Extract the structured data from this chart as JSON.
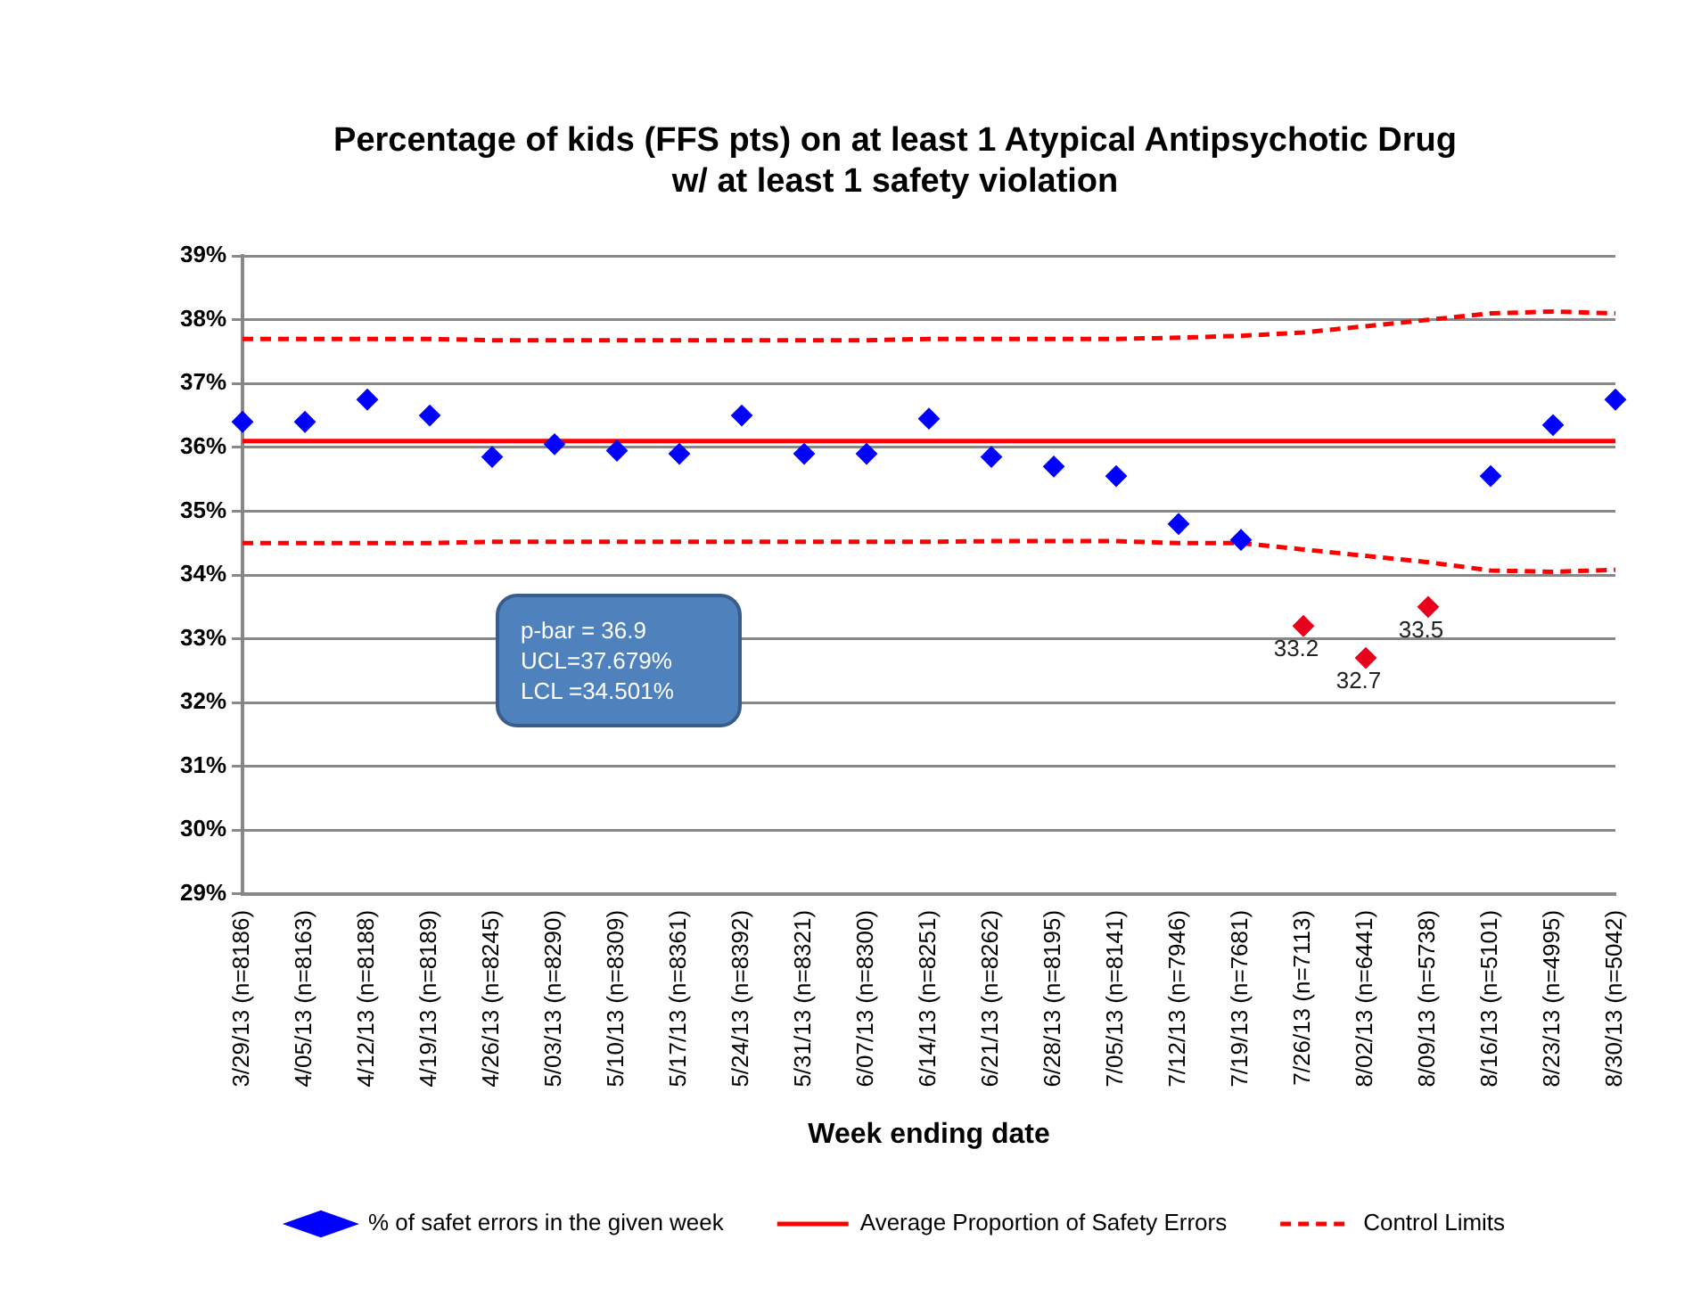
{
  "chart_data": {
    "type": "scatter",
    "title": "Percentage of kids (FFS pts) on at least 1 Atypical Antipsychotic Drug\nw/ at least 1 safety violation",
    "xlabel": "Week ending date",
    "categories": [
      "3/29/13 (n=8186)",
      "4/05/13 (n=8163)",
      "4/12/13 (n=8188)",
      "4/19/13 (n=8189)",
      "4/26/13 (n=8245)",
      "5/03/13 (n=8290)",
      "5/10/13 (n=8309)",
      "5/17/13 (n=8361)",
      "5/24/13 (n=8392)",
      "5/31/13 (n=8321)",
      "6/07/13 (n=8300)",
      "6/14/13 (n=8251)",
      "6/21/13 (n=8262)",
      "6/28/13 (n=8195)",
      "7/05/13 (n=8141)",
      "7/12/13 (n=7946)",
      "7/19/13 (n=7681)",
      "7/26/13 (n=7113)",
      "8/02/13 (n=6441)",
      "8/09/13 (n=5738)",
      "8/16/13 (n=5101)",
      "8/23/13 (n=4995)",
      "8/30/13 (n=5042)"
    ],
    "series": [
      {
        "name": "% of safet errors in the given week",
        "marker": "diamond",
        "color": "#0000ff",
        "colors": [
          "#0000ff",
          "#0000ff",
          "#0000ff",
          "#0000ff",
          "#0000ff",
          "#0000ff",
          "#0000ff",
          "#0000ff",
          "#0000ff",
          "#0000ff",
          "#0000ff",
          "#0000ff",
          "#0000ff",
          "#0000ff",
          "#0000ff",
          "#0000ff",
          "#0000ff",
          "#e8001c",
          "#e8001c",
          "#e8001c",
          "#0000ff",
          "#0000ff",
          "#0000ff"
        ],
        "values": [
          36.4,
          36.4,
          36.75,
          36.5,
          35.85,
          36.05,
          35.95,
          35.9,
          36.5,
          35.9,
          35.9,
          36.45,
          35.85,
          35.7,
          35.55,
          34.8,
          34.55,
          33.2,
          32.7,
          33.5,
          35.55,
          36.35,
          36.75
        ],
        "value_labels": [
          null,
          null,
          null,
          null,
          null,
          null,
          null,
          null,
          null,
          null,
          null,
          null,
          null,
          null,
          null,
          null,
          null,
          "33.2",
          "32.7",
          "33.5",
          null,
          null,
          null
        ]
      },
      {
        "name": "Average Proportion of Safety Errors",
        "type": "line",
        "line_style": "solid",
        "color": "#ff0000",
        "values": [
          36.1,
          36.1,
          36.1,
          36.1,
          36.1,
          36.1,
          36.1,
          36.1,
          36.1,
          36.1,
          36.1,
          36.1,
          36.1,
          36.1,
          36.1,
          36.1,
          36.1,
          36.1,
          36.1,
          36.1,
          36.1,
          36.1,
          36.1
        ]
      },
      {
        "name": "Control Limits",
        "type": "line",
        "line_style": "dashed",
        "color": "#ff0000",
        "values": [
          37.7,
          37.7,
          37.7,
          37.7,
          37.68,
          37.68,
          37.68,
          37.68,
          37.68,
          37.68,
          37.68,
          37.7,
          37.7,
          37.7,
          37.7,
          37.72,
          37.75,
          37.8,
          37.9,
          38.0,
          38.1,
          38.13,
          38.1
        ]
      },
      {
        "type": "line",
        "line_style": "dashed",
        "color": "#ff0000",
        "values": [
          34.5,
          34.5,
          34.5,
          34.5,
          34.52,
          34.52,
          34.52,
          34.52,
          34.52,
          34.52,
          34.52,
          34.52,
          34.53,
          34.53,
          34.53,
          34.5,
          34.5,
          34.4,
          34.3,
          34.2,
          34.07,
          34.05,
          34.08
        ]
      }
    ],
    "ylim": [
      29,
      39
    ],
    "yticks": [
      {
        "value": 29,
        "label": "29%"
      },
      {
        "value": 30,
        "label": "30%"
      },
      {
        "value": 31,
        "label": "31%"
      },
      {
        "value": 32,
        "label": "32%"
      },
      {
        "value": 33,
        "label": "33%"
      },
      {
        "value": 34,
        "label": "34%"
      },
      {
        "value": 35,
        "label": "35%"
      },
      {
        "value": 36,
        "label": "36%"
      },
      {
        "value": 37,
        "label": "37%"
      },
      {
        "value": 38,
        "label": "38%"
      },
      {
        "value": 39,
        "label": "39%"
      }
    ],
    "grid": "y",
    "legend": "bottom",
    "annotations": [
      "p-bar = 36.9",
      "UCL=37.679%",
      "LCL =34.501%"
    ]
  }
}
